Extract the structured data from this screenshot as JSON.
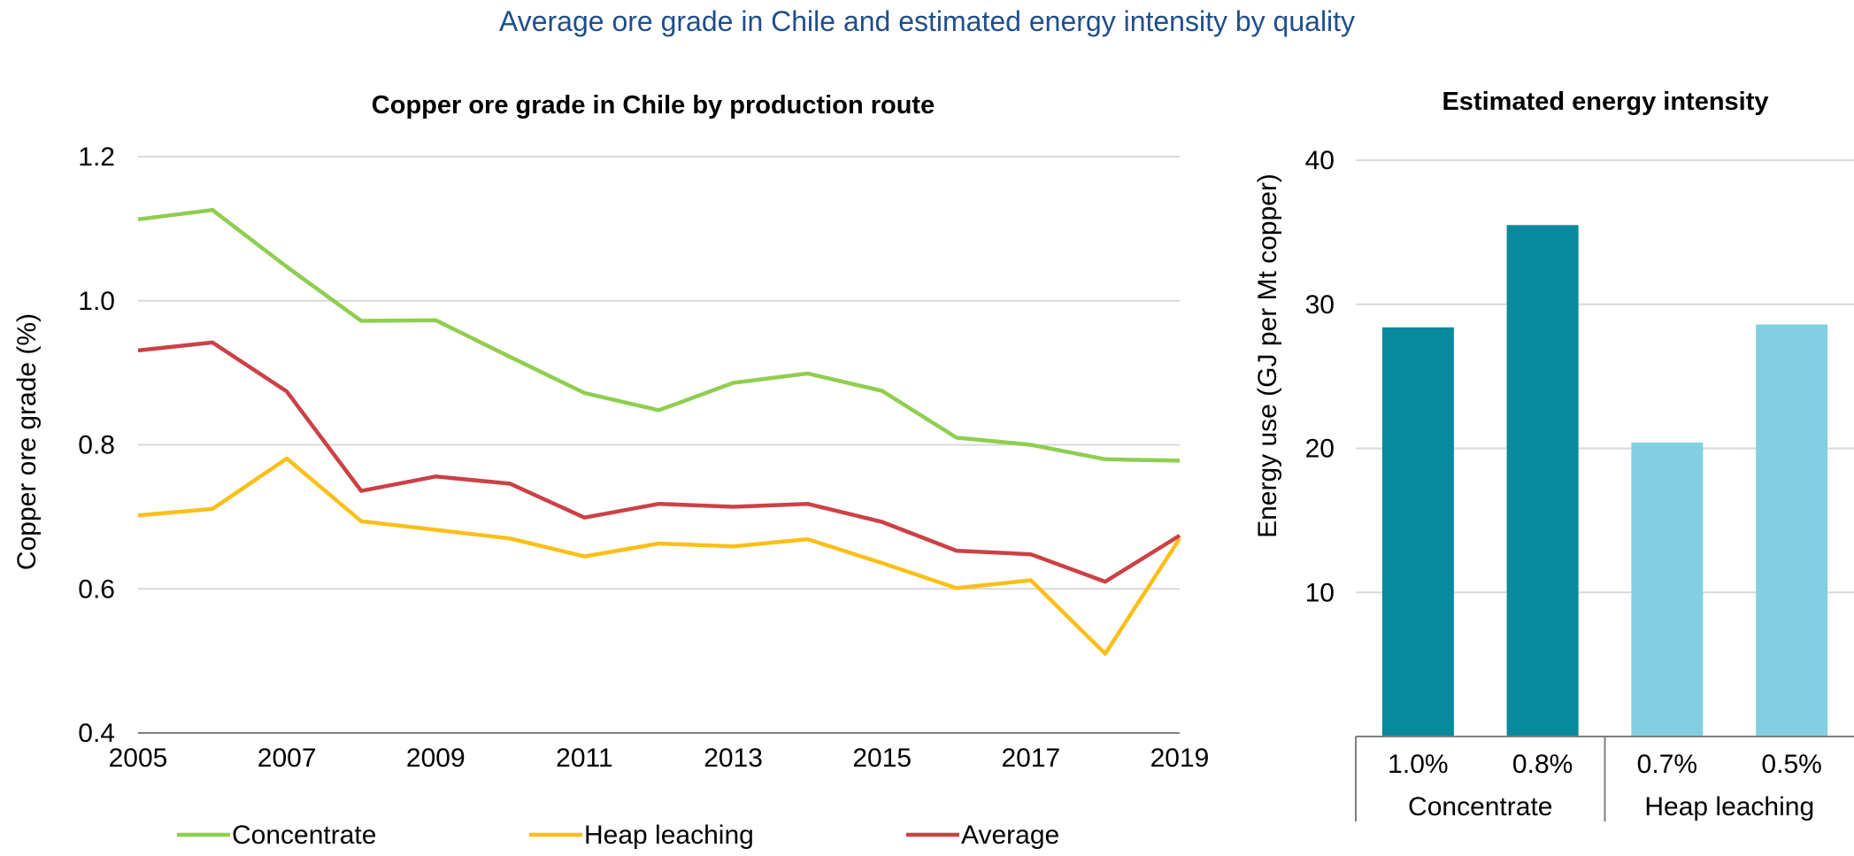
{
  "title": "Average ore grade in Chile and estimated energy intensity by quality",
  "chart_data": [
    {
      "type": "line",
      "title": "Copper ore grade in Chile by production route",
      "xlabel": "",
      "ylabel": "Copper ore grade (%)",
      "x": [
        2005,
        2006,
        2007,
        2008,
        2009,
        2010,
        2011,
        2012,
        2013,
        2014,
        2015,
        2016,
        2017,
        2018,
        2019
      ],
      "xticks": [
        "2005",
        "2007",
        "2009",
        "2011",
        "2013",
        "2015",
        "2017",
        "2019"
      ],
      "yticks": [
        "0.4",
        "0.6",
        "0.8",
        "1.0",
        "1.2"
      ],
      "ylim": [
        0.4,
        1.2
      ],
      "grid": true,
      "legend": "bottom",
      "series": [
        {
          "name": "Concentrate",
          "color": "#8fce4f",
          "values": [
            1.113,
            1.126,
            1.047,
            0.972,
            0.973,
            0.922,
            0.872,
            0.848,
            0.886,
            0.899,
            0.875,
            0.81,
            0.8,
            0.78,
            0.778
          ]
        },
        {
          "name": "Heap leaching",
          "color": "#fbbf18",
          "values": [
            0.702,
            0.711,
            0.781,
            0.694,
            0.682,
            0.67,
            0.645,
            0.663,
            0.659,
            0.669,
            0.636,
            0.601,
            0.612,
            0.51,
            0.67
          ]
        },
        {
          "name": "Average",
          "color": "#cc4146",
          "values": [
            0.931,
            0.942,
            0.874,
            0.736,
            0.756,
            0.746,
            0.699,
            0.718,
            0.714,
            0.718,
            0.693,
            0.653,
            0.648,
            0.61,
            0.674
          ]
        }
      ]
    },
    {
      "type": "bar",
      "title": "Estimated energy intensity",
      "ylabel": "Energy use (GJ per Mt copper)",
      "ylim": [
        0,
        40
      ],
      "yticks": [
        "10",
        "20",
        "30",
        "40"
      ],
      "grid": true,
      "categories": [
        "1.0%",
        "0.8%",
        "0.7%",
        "0.5%"
      ],
      "groups": [
        {
          "label": "Concentrate",
          "categories": [
            "1.0%",
            "0.8%"
          ],
          "color": "#078a9e"
        },
        {
          "label": "Heap leaching",
          "categories": [
            "0.7%",
            "0.5%"
          ],
          "color": "#82cfe2"
        }
      ],
      "values": [
        28.4,
        35.5,
        20.4,
        28.6
      ],
      "colors": [
        "#078a9e",
        "#078a9e",
        "#82cfe2",
        "#82cfe2"
      ]
    }
  ]
}
